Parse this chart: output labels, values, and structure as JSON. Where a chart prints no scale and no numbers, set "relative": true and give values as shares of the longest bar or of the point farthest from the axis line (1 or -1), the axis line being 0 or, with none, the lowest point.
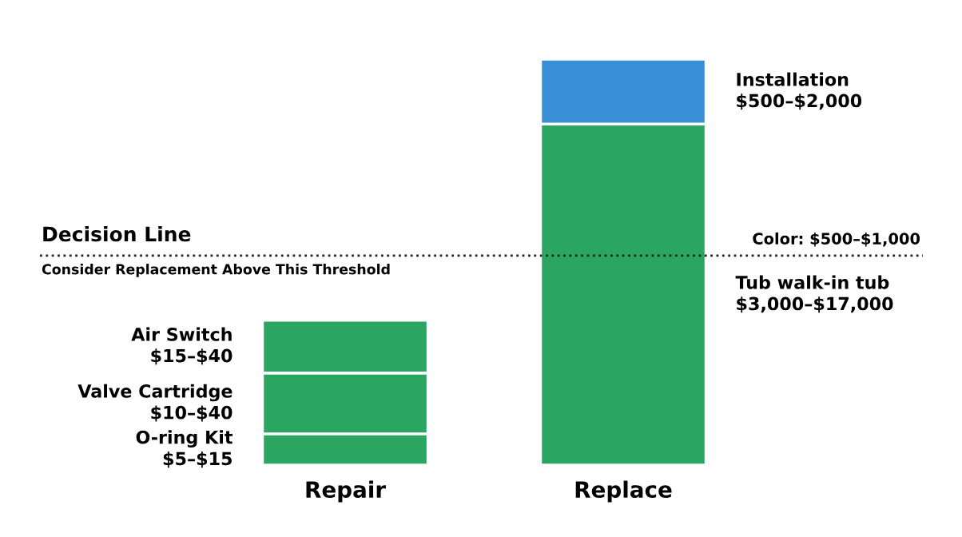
{
  "chart_data": {
    "type": "bar",
    "stacked": true,
    "relative": true,
    "categories": [
      "Repair",
      "Replace"
    ],
    "series": [
      {
        "colors": [
          "#2aa660",
          "#2aa660"
        ],
        "values": [
          0.077,
          0.84
        ]
      },
      {
        "colors": [
          "#2aa660",
          "#3a90d6"
        ],
        "values": [
          0.15,
          0.16
        ]
      },
      {
        "colors": [
          "#2aa660",
          null
        ],
        "values": [
          0.13,
          null
        ]
      }
    ],
    "ref_lines": [
      {
        "axis": "y",
        "value": 0.516,
        "label": "Decision Line",
        "color": "#222222",
        "line_style": "dotted"
      }
    ],
    "annotations": [
      "Consider Replacement Above This Threshold",
      "Color: $500–$1,000",
      "O-ring Kit\n$5–$15",
      "Tub walk-in tub\n$3,000–$17,000",
      "Valve Cartridge\n$10–$40",
      "Installation\n$500–$2,000",
      "Air Switch\n$15–$40"
    ]
  }
}
